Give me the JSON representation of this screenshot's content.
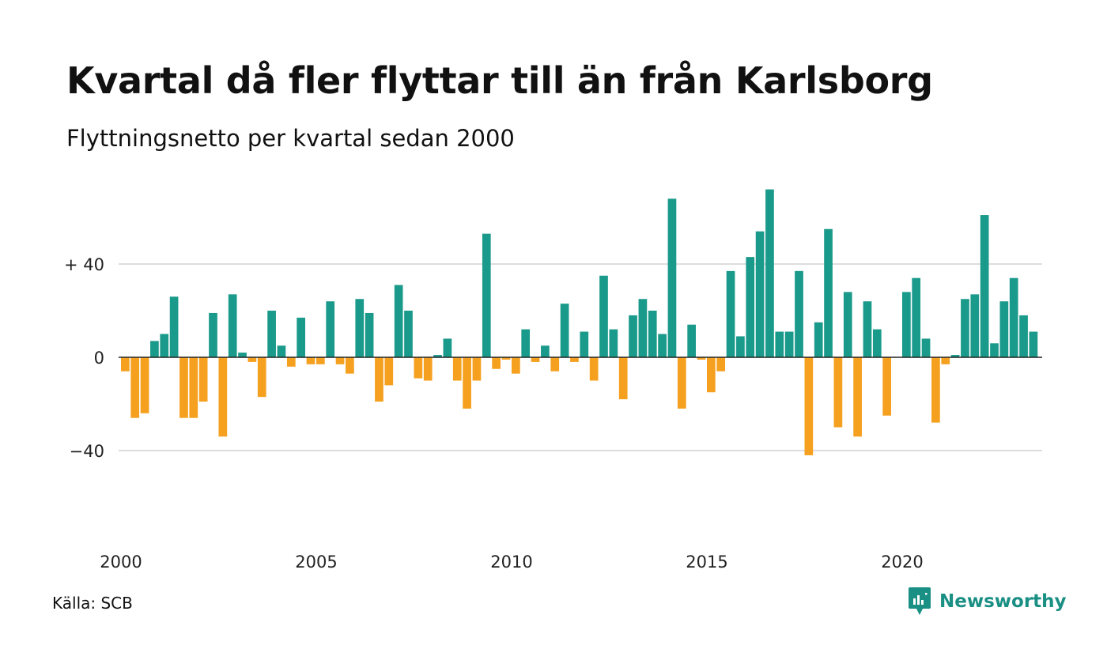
{
  "title": "Kvartal då fler flyttar till än från Karlsborg",
  "subtitle": "Flyttningsnetto per kvartal sedan 2000",
  "source": "Källa: SCB",
  "brand": {
    "name": "Newsworthy",
    "icon": "newsworthy-logo-icon",
    "color": "#1a8f84"
  },
  "colors": {
    "positive": "#1a9a8a",
    "negative": "#f5a01e",
    "grid": "#dddddd",
    "zero_line": "#222222"
  },
  "chart_data": {
    "type": "bar",
    "title": "Kvartal då fler flyttar till än från Karlsborg",
    "subtitle": "Flyttningsnetto per kvartal sedan 2000",
    "xlabel": "",
    "ylabel": "",
    "x_tick_labels": [
      "2000",
      "2005",
      "2010",
      "2015",
      "2020"
    ],
    "y_tick_labels": [
      "+ 40",
      "0",
      "−40"
    ],
    "y_ticks": [
      40,
      0,
      -40
    ],
    "ylim": [
      -80,
      76
    ],
    "grid": true,
    "legend": "none",
    "start_quarter": "2000Q1",
    "values": [
      -6,
      -26,
      -24,
      7,
      10,
      26,
      -26,
      -26,
      -19,
      19,
      -34,
      27,
      2,
      -2,
      -17,
      20,
      5,
      -4,
      17,
      -3,
      -3,
      24,
      -3,
      -7,
      25,
      19,
      -19,
      -12,
      31,
      20,
      -9,
      -10,
      1,
      8,
      -10,
      -22,
      -10,
      53,
      -5,
      -1,
      -7,
      12,
      -2,
      5,
      -6,
      23,
      -2,
      11,
      -10,
      35,
      12,
      -18,
      18,
      25,
      20,
      10,
      68,
      -22,
      14,
      -1,
      -15,
      -6,
      37,
      9,
      43,
      54,
      72,
      11,
      11,
      37,
      -42,
      15,
      55,
      -30,
      28,
      -34,
      24,
      12,
      -25,
      0,
      28,
      34,
      8,
      -28,
      -3,
      1,
      25,
      27,
      61,
      6,
      24,
      34,
      18,
      11
    ]
  }
}
